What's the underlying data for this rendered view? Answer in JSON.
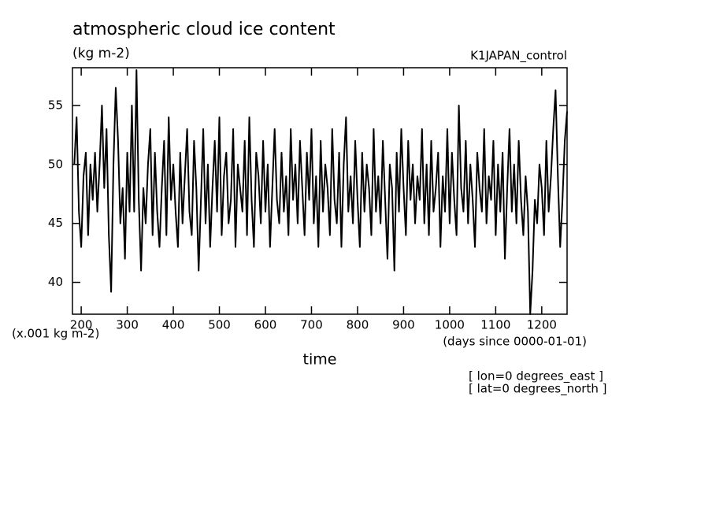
{
  "chart_data": {
    "type": "line",
    "title": "atmospheric cloud ice content",
    "subtitle": "(kg m-2)",
    "experiment": "K1JAPAN_control",
    "y_unit_label": "(x.001 kg m-2)",
    "x_unit_label": "(days since 0000-01-01)",
    "x_label": "time",
    "annotations": [
      "[ lon=0 degrees_east ]",
      "[ lat=0 degrees_north ]"
    ],
    "xlim": [
      181,
      1255
    ],
    "ylim": [
      37.3,
      58.2
    ],
    "xticks": [
      200,
      300,
      400,
      500,
      600,
      700,
      800,
      900,
      1000,
      1100,
      1200
    ],
    "yticks": [
      40,
      45,
      50,
      55
    ],
    "series": [
      {
        "name": "cloud ice",
        "color": "#000000",
        "x": [
          185,
          190,
          195,
          200,
          205,
          210,
          215,
          220,
          225,
          230,
          235,
          240,
          245,
          250,
          255,
          260,
          265,
          270,
          275,
          280,
          285,
          290,
          295,
          300,
          305,
          310,
          315,
          320,
          325,
          330,
          335,
          340,
          345,
          350,
          355,
          360,
          365,
          370,
          375,
          380,
          385,
          390,
          395,
          400,
          405,
          410,
          415,
          420,
          425,
          430,
          435,
          440,
          445,
          450,
          455,
          460,
          465,
          470,
          475,
          480,
          485,
          490,
          495,
          500,
          505,
          510,
          515,
          520,
          525,
          530,
          535,
          540,
          545,
          550,
          555,
          560,
          565,
          570,
          575,
          580,
          585,
          590,
          595,
          600,
          605,
          610,
          615,
          620,
          625,
          630,
          635,
          640,
          645,
          650,
          655,
          660,
          665,
          670,
          675,
          680,
          685,
          690,
          695,
          700,
          705,
          710,
          715,
          720,
          725,
          730,
          735,
          740,
          745,
          750,
          755,
          760,
          765,
          770,
          775,
          780,
          785,
          790,
          795,
          800,
          805,
          810,
          815,
          820,
          825,
          830,
          835,
          840,
          845,
          850,
          855,
          860,
          865,
          870,
          875,
          880,
          885,
          890,
          895,
          900,
          905,
          910,
          915,
          920,
          925,
          930,
          935,
          940,
          945,
          950,
          955,
          960,
          965,
          970,
          975,
          980,
          985,
          990,
          995,
          1000,
          1005,
          1010,
          1015,
          1020,
          1025,
          1030,
          1035,
          1040,
          1045,
          1050,
          1055,
          1060,
          1065,
          1070,
          1075,
          1080,
          1085,
          1090,
          1095,
          1100,
          1105,
          1110,
          1115,
          1120,
          1125,
          1130,
          1135,
          1140,
          1145,
          1150,
          1155,
          1160,
          1165,
          1170,
          1175,
          1180,
          1185,
          1190,
          1195,
          1200,
          1205,
          1210,
          1215,
          1220,
          1225,
          1230,
          1235,
          1240,
          1245,
          1250,
          1255
        ],
        "values": [
          50,
          54,
          46,
          43,
          49,
          51,
          44,
          50,
          47,
          51,
          46,
          50,
          55,
          48,
          53,
          44,
          39.2,
          50,
          56.5,
          52,
          45,
          48,
          42,
          51,
          46,
          55,
          46,
          58,
          47,
          41,
          48,
          45,
          50,
          53,
          44,
          51,
          46,
          43,
          48,
          52,
          44,
          54,
          47,
          50,
          46,
          43,
          51,
          45,
          49,
          53,
          46,
          44,
          52,
          48,
          41,
          47,
          53,
          45,
          50,
          43,
          48,
          52,
          46,
          54,
          44,
          49,
          51,
          45,
          47,
          53,
          43,
          50,
          48,
          46,
          52,
          44,
          54,
          47,
          43,
          51,
          49,
          45,
          52,
          46,
          50,
          43,
          48,
          53,
          47,
          45,
          51,
          46,
          49,
          44,
          53,
          47,
          50,
          45,
          52,
          48,
          44,
          51,
          47,
          53,
          45,
          49,
          43,
          52,
          46,
          50,
          48,
          44,
          53,
          47,
          45,
          51,
          43,
          50,
          54,
          46,
          49,
          45,
          52,
          47,
          43,
          51,
          46,
          50,
          48,
          44,
          53,
          46,
          49,
          45,
          52,
          47,
          42,
          50,
          48,
          41,
          51,
          46,
          53,
          48,
          44,
          52,
          47,
          50,
          45,
          49,
          47,
          53,
          45,
          50,
          44,
          52,
          46,
          48,
          51,
          43,
          49,
          46,
          53,
          45,
          51,
          47,
          44,
          55,
          48,
          46,
          52,
          45,
          50,
          47,
          43,
          51,
          48,
          46,
          53,
          45,
          49,
          47,
          52,
          44,
          50,
          46,
          51,
          42,
          48,
          53,
          46,
          50,
          45,
          52,
          47,
          44,
          49,
          46,
          37.3,
          41,
          47,
          45,
          50,
          48,
          44,
          52,
          46,
          49,
          53,
          56.3,
          49,
          43,
          47,
          52,
          54.5
        ]
      }
    ]
  }
}
